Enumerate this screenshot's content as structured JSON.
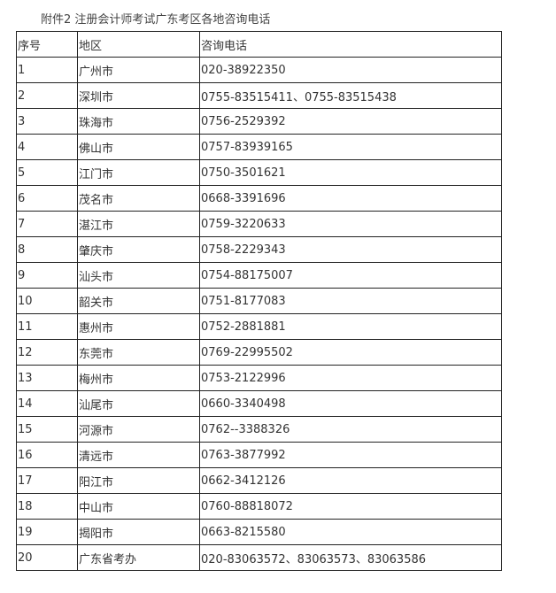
{
  "title": "附件2  注册会计师考试广东考区各地咨询电话",
  "table": {
    "headers": [
      "序号",
      "地区",
      "咨询电话"
    ],
    "rows": [
      [
        "1",
        "广州市",
        "020-38922350"
      ],
      [
        "2",
        "深圳市",
        "0755-83515411、0755-83515438"
      ],
      [
        "3",
        "珠海市",
        "0756-2529392"
      ],
      [
        "4",
        "佛山市",
        "0757-83939165"
      ],
      [
        "5",
        "江门市",
        "0750-3501621"
      ],
      [
        "6",
        "茂名市",
        "0668-3391696"
      ],
      [
        "7",
        "湛江市",
        "0759-3220633"
      ],
      [
        "8",
        "肇庆市",
        "0758-2229343"
      ],
      [
        "9",
        "汕头市",
        "0754-88175007"
      ],
      [
        "10",
        "韶关市",
        "0751-8177083"
      ],
      [
        "11",
        "惠州市",
        "0752-2881881"
      ],
      [
        "12",
        "东莞市",
        "0769-22995502"
      ],
      [
        "13",
        "梅州市",
        "0753-2122996"
      ],
      [
        "14",
        "汕尾市",
        "0660-3340498"
      ],
      [
        "15",
        "河源市",
        "0762--3388326"
      ],
      [
        "16",
        "清远市",
        "0763-3877992"
      ],
      [
        "17",
        "阳江市",
        "0662-3412126"
      ],
      [
        "18",
        "中山市",
        "0760-88818072"
      ],
      [
        "19",
        "揭阳市",
        "0663-8215580"
      ],
      [
        "20",
        "广东省考办",
        "020-83063572、83063573、83063586"
      ]
    ]
  }
}
